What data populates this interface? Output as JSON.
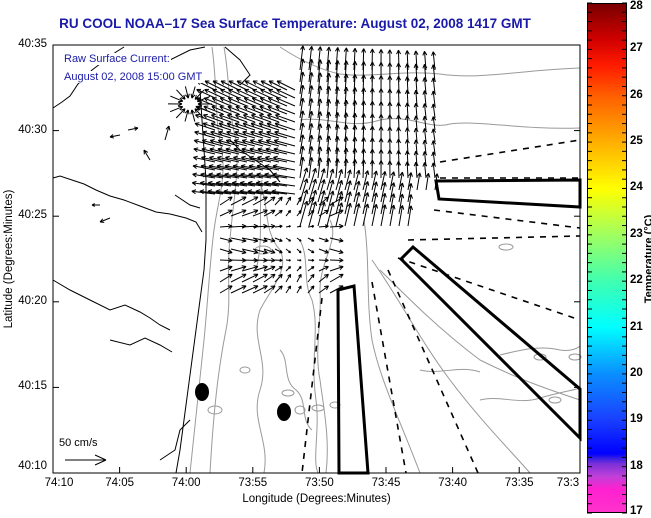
{
  "title": "RU COOL  NOAA–17  Sea Surface Temperature:  August 02, 2008 1417 GMT",
  "overlay": {
    "line1": "Raw Surface Current:",
    "line2": "August 02, 2008 15:00 GMT"
  },
  "axes": {
    "xlabel": "Longitude (Degrees:Minutes)",
    "ylabel": "Latitude (Degrees:Minutes)",
    "xticks": [
      "74:10",
      "74:05",
      "74:00",
      "73:55",
      "73:50",
      "73:45",
      "73:40",
      "73:35",
      "73:3"
    ],
    "yticks": [
      "40:35",
      "40:30",
      "40:25",
      "40:20",
      "40:15",
      "40:10"
    ]
  },
  "scale_vector": {
    "label": "50 cm/s",
    "value_cm_s": 50
  },
  "colorbar": {
    "title": "Temperature (°C)",
    "min": 17,
    "max": 28,
    "ticks": [
      "28",
      "27",
      "26",
      "25",
      "24",
      "23",
      "22",
      "21",
      "20",
      "19",
      "18",
      "17"
    ]
  },
  "colors": {
    "title_text": "#1a1aa8",
    "coastline": "#000000",
    "bathymetry_contour": "#9a9a9a",
    "vectors": "#000000"
  },
  "features": {
    "markers": [
      {
        "name": "marker-west",
        "lon": "73:59.0",
        "lat": "40:14.6"
      },
      {
        "name": "marker-east",
        "lon": "73:52.3",
        "lat": "40:13.5"
      }
    ],
    "outlined_regions": 3,
    "dashed_lines": 8
  }
}
